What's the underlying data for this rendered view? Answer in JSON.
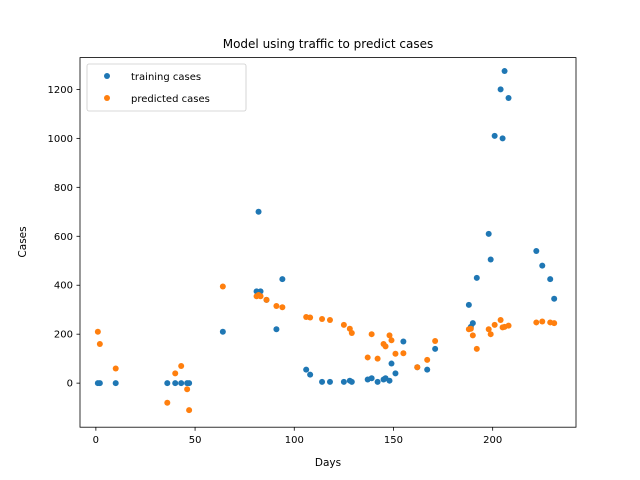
{
  "chart_data": {
    "type": "scatter",
    "title": "Model using traffic to predict cases",
    "xlabel": "Days",
    "ylabel": "Cases",
    "xlim": [
      -8,
      242
    ],
    "ylim": [
      -180,
      1330
    ],
    "xticks": [
      0,
      50,
      100,
      150,
      200
    ],
    "yticks": [
      0,
      200,
      400,
      600,
      800,
      1000,
      1200
    ],
    "grid": false,
    "legend_position": "top-left",
    "series": [
      {
        "name": "training cases",
        "color": "#1f77b4",
        "points": [
          [
            1,
            0
          ],
          [
            2,
            0
          ],
          [
            10,
            0
          ],
          [
            36,
            0
          ],
          [
            40,
            0
          ],
          [
            43,
            0
          ],
          [
            46,
            0
          ],
          [
            47,
            0
          ],
          [
            64,
            210
          ],
          [
            81,
            375
          ],
          [
            82,
            700
          ],
          [
            83,
            375
          ],
          [
            86,
            340
          ],
          [
            91,
            220
          ],
          [
            94,
            425
          ],
          [
            106,
            55
          ],
          [
            108,
            35
          ],
          [
            114,
            5
          ],
          [
            118,
            5
          ],
          [
            125,
            5
          ],
          [
            128,
            10
          ],
          [
            129,
            5
          ],
          [
            137,
            15
          ],
          [
            139,
            20
          ],
          [
            142,
            5
          ],
          [
            145,
            15
          ],
          [
            146,
            20
          ],
          [
            148,
            10
          ],
          [
            149,
            80
          ],
          [
            151,
            40
          ],
          [
            155,
            170
          ],
          [
            162,
            65
          ],
          [
            167,
            55
          ],
          [
            171,
            140
          ],
          [
            188,
            320
          ],
          [
            189,
            230
          ],
          [
            190,
            245
          ],
          [
            192,
            430
          ],
          [
            198,
            610
          ],
          [
            199,
            505
          ],
          [
            201,
            1010
          ],
          [
            204,
            1200
          ],
          [
            205,
            1000
          ],
          [
            206,
            1275
          ],
          [
            208,
            1165
          ],
          [
            222,
            540
          ],
          [
            225,
            480
          ],
          [
            229,
            425
          ],
          [
            231,
            345
          ]
        ]
      },
      {
        "name": "predicted cases",
        "color": "#ff7f0e",
        "points": [
          [
            1,
            210
          ],
          [
            2,
            160
          ],
          [
            10,
            60
          ],
          [
            36,
            -80
          ],
          [
            40,
            40
          ],
          [
            43,
            70
          ],
          [
            46,
            -25
          ],
          [
            47,
            -110
          ],
          [
            64,
            395
          ],
          [
            81,
            355
          ],
          [
            82,
            360
          ],
          [
            83,
            355
          ],
          [
            86,
            340
          ],
          [
            91,
            315
          ],
          [
            94,
            310
          ],
          [
            106,
            270
          ],
          [
            108,
            268
          ],
          [
            114,
            262
          ],
          [
            118,
            258
          ],
          [
            125,
            238
          ],
          [
            128,
            222
          ],
          [
            129,
            205
          ],
          [
            137,
            105
          ],
          [
            139,
            200
          ],
          [
            142,
            100
          ],
          [
            145,
            160
          ],
          [
            146,
            150
          ],
          [
            148,
            195
          ],
          [
            149,
            175
          ],
          [
            151,
            120
          ],
          [
            155,
            122
          ],
          [
            162,
            65
          ],
          [
            167,
            95
          ],
          [
            171,
            172
          ],
          [
            188,
            220
          ],
          [
            189,
            222
          ],
          [
            190,
            195
          ],
          [
            192,
            140
          ],
          [
            198,
            220
          ],
          [
            199,
            200
          ],
          [
            201,
            238
          ],
          [
            204,
            258
          ],
          [
            205,
            228
          ],
          [
            206,
            230
          ],
          [
            208,
            235
          ],
          [
            222,
            248
          ],
          [
            225,
            252
          ],
          [
            229,
            248
          ],
          [
            231,
            245
          ]
        ]
      }
    ]
  }
}
